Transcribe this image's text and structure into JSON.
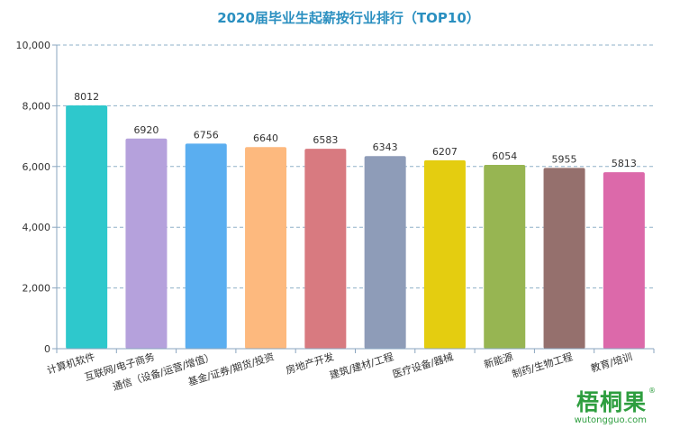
{
  "chart_data": {
    "type": "bar",
    "title": "2020届毕业生起薪按行业排行（TOP10）",
    "categories": [
      "计算机软件",
      "互联网/电子商务",
      "通信（设备/运营/增值）",
      "基金/证券/期货/投资",
      "房地产开发",
      "建筑/建材/工程",
      "医疗设备/器械",
      "新能源",
      "制药/生物工程",
      "教育/培训"
    ],
    "values": [
      8012,
      6920,
      6756,
      6640,
      6583,
      6343,
      6207,
      6054,
      5955,
      5813
    ],
    "value_labels": [
      "8012",
      "6920",
      "6756",
      "6640",
      "6583",
      "6343",
      "6207",
      "6054",
      "5955",
      "5813"
    ],
    "colors": [
      "#2ec8cc",
      "#b5a1dc",
      "#5aaef0",
      "#fdb97e",
      "#d87a80",
      "#8e9cb8",
      "#e4cd10",
      "#97b552",
      "#95706d",
      "#dc69aa"
    ],
    "yticks": [
      "0",
      "2,000",
      "4,000",
      "6,000",
      "8,000",
      "10,000"
    ],
    "ylim": [
      0,
      10000
    ],
    "grid": true,
    "xlabel": "",
    "ylabel": ""
  },
  "logo": {
    "name": "梧桐果",
    "url": "wutongguo.com",
    "reg": "®"
  }
}
